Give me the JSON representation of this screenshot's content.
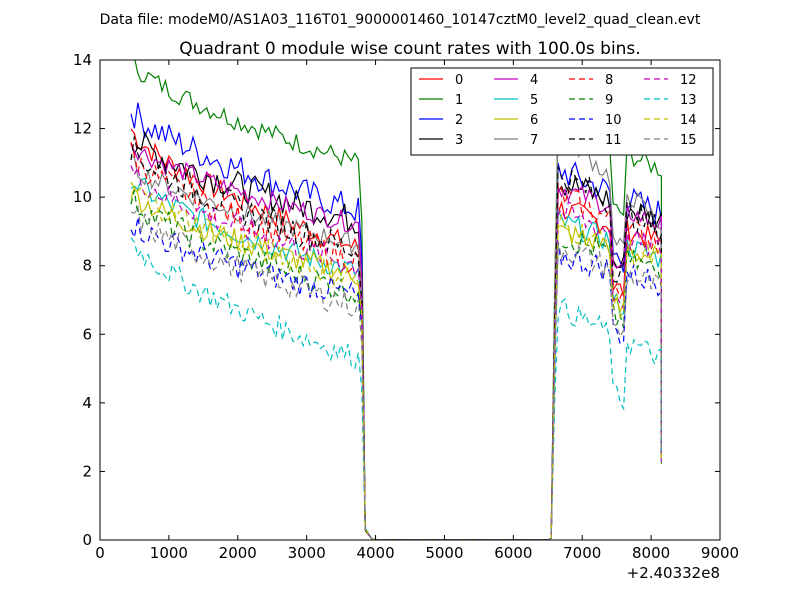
{
  "figure": {
    "suptitle": "Data file: modeM0/AS1A03_116T01_9000001460_10147cztM0_level2_quad_clean.evt"
  },
  "chart_data": {
    "type": "line",
    "title": "Quadrant 0 module wise count rates with 100.0s bins.",
    "xlabel": "",
    "ylabel": "",
    "x_offset_label": "+2.40332e8",
    "xlim": [
      0,
      9000
    ],
    "ylim": [
      0,
      14
    ],
    "xticks": [
      0,
      1000,
      2000,
      3000,
      4000,
      5000,
      6000,
      7000,
      8000,
      9000
    ],
    "yticks": [
      0,
      2,
      4,
      6,
      8,
      10,
      12,
      14
    ],
    "grid": false,
    "legend_position": "top-right",
    "legend_columns": 4,
    "segments": {
      "seg1_start": 450,
      "seg1_end": 3750,
      "dropout_x": [
        3850,
        3950
      ],
      "seg2_start": 6650,
      "seg2_end": 8150
    },
    "series": [
      {
        "name": "0",
        "color": "#ff0000",
        "dash": "solid",
        "level1": [
          12.0,
          8.5
        ],
        "level2": [
          9.7,
          8.7
        ],
        "noise": 0.35
      },
      {
        "name": "1",
        "color": "#008000",
        "dash": "solid",
        "level1": [
          14.0,
          11.0
        ],
        "level2": [
          12.2,
          10.8
        ],
        "noise": 0.3
      },
      {
        "name": "2",
        "color": "#0000ff",
        "dash": "solid",
        "level1": [
          12.6,
          9.6
        ],
        "level2": [
          10.8,
          9.5
        ],
        "noise": 0.45
      },
      {
        "name": "3",
        "color": "#000000",
        "dash": "solid",
        "level1": [
          11.8,
          9.3
        ],
        "level2": [
          10.5,
          9.3
        ],
        "noise": 0.45
      },
      {
        "name": "4",
        "color": "#bf00bf",
        "dash": "solid",
        "level1": [
          11.6,
          9.2
        ],
        "level2": [
          10.3,
          9.2
        ],
        "noise": 0.3
      },
      {
        "name": "5",
        "color": "#00bfbf",
        "dash": "solid",
        "level1": [
          10.6,
          7.8
        ],
        "level2": [
          9.3,
          8.2
        ],
        "noise": 0.35
      },
      {
        "name": "6",
        "color": "#bfbf00",
        "dash": "solid",
        "level1": [
          10.2,
          7.7
        ],
        "level2": [
          9.0,
          8.2
        ],
        "noise": 0.35
      },
      {
        "name": "7",
        "color": "#808080",
        "dash": "solid",
        "level1": [
          11.0,
          8.6
        ],
        "level2": [
          12.0,
          9.2
        ],
        "noise": 0.3
      },
      {
        "name": "8",
        "color": "#ff0000",
        "dash": "dashed",
        "level1": [
          11.3,
          8.1
        ],
        "level2": [
          10.1,
          8.6
        ],
        "noise": 0.4
      },
      {
        "name": "9",
        "color": "#008000",
        "dash": "dashed",
        "level1": [
          10.0,
          7.2
        ],
        "level2": [
          8.9,
          7.8
        ],
        "noise": 0.4
      },
      {
        "name": "10",
        "color": "#0000ff",
        "dash": "dashed",
        "level1": [
          9.3,
          7.1
        ],
        "level2": [
          8.3,
          7.5
        ],
        "noise": 0.4
      },
      {
        "name": "11",
        "color": "#000000",
        "dash": "dashed",
        "level1": [
          11.5,
          8.4
        ],
        "level2": [
          10.7,
          9.0
        ],
        "noise": 0.45
      },
      {
        "name": "12",
        "color": "#bf00bf",
        "dash": "dashed",
        "level1": [
          10.8,
          8.0
        ],
        "level2": [
          9.6,
          8.4
        ],
        "noise": 0.4
      },
      {
        "name": "13",
        "color": "#00bfbf",
        "dash": "dashed",
        "level1": [
          8.8,
          5.3
        ],
        "level2": [
          6.8,
          5.3
        ],
        "noise": 0.35
      },
      {
        "name": "14",
        "color": "#bfbf00",
        "dash": "dashed",
        "level1": [
          10.4,
          7.6
        ],
        "level2": [
          9.2,
          8.1
        ],
        "noise": 0.4
      },
      {
        "name": "15",
        "color": "#808080",
        "dash": "dashed",
        "level1": [
          9.6,
          6.8
        ],
        "level2": [
          8.6,
          7.3
        ],
        "noise": 0.4
      }
    ]
  }
}
